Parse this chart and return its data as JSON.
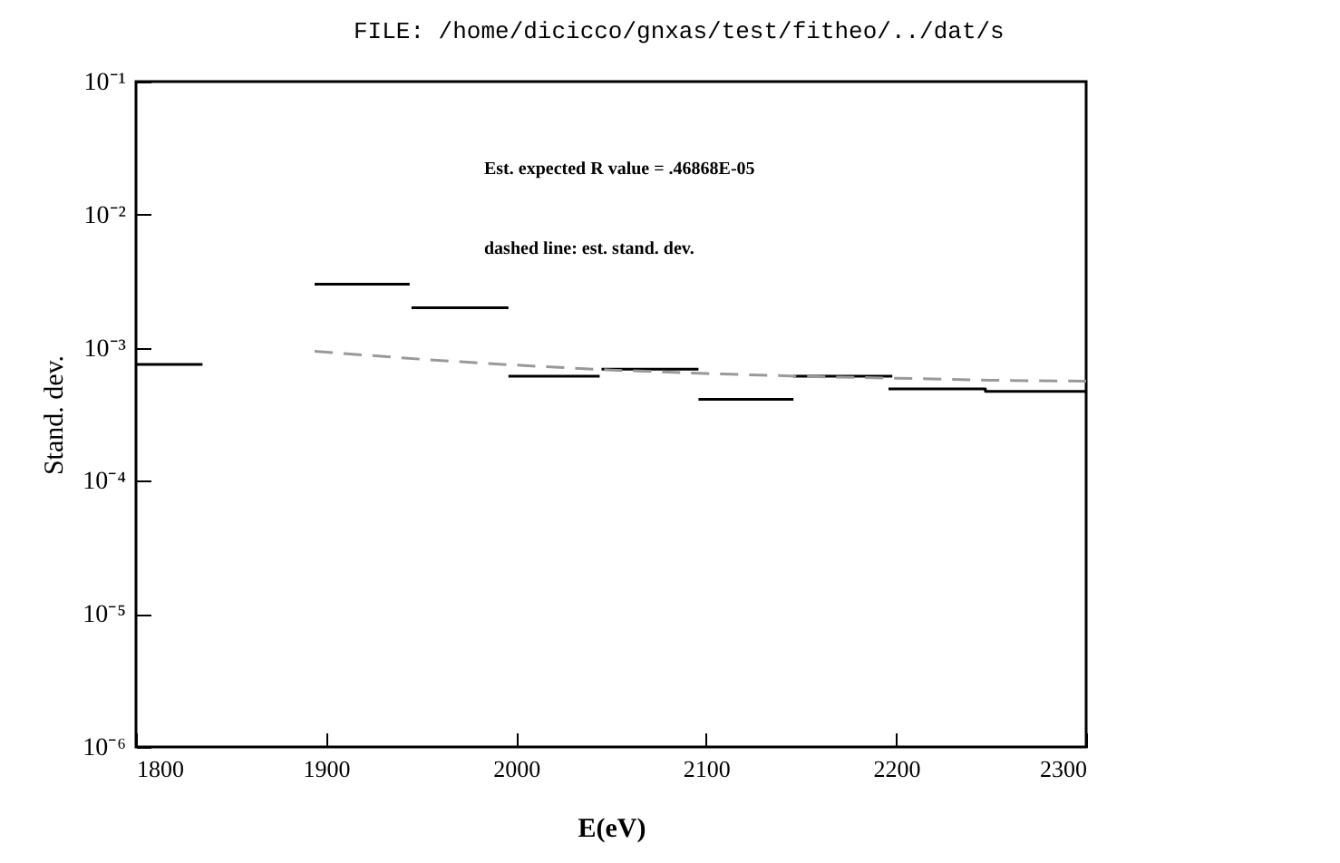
{
  "chart_data": {
    "type": "line",
    "title": "FILE: /home/dicicco/gnxas/test/fitheo/../dat/s",
    "xlabel": "E(eV)",
    "ylabel": "Stand. dev.",
    "annotations": [
      "Est. expected R value = .46868E-05",
      "dashed line: est. stand. dev."
    ],
    "log": "y",
    "grid": false,
    "xlim": [
      1800,
      2300
    ],
    "xticks": [
      1800,
      1900,
      2000,
      2100,
      2200,
      2300
    ],
    "ylim": [
      1e-06,
      0.1
    ],
    "yticks": [
      {
        "value": 1e-06,
        "label": "10⁻⁶"
      },
      {
        "value": 1e-05,
        "label": "10⁻⁵"
      },
      {
        "value": 0.0001,
        "label": "10⁻⁴"
      },
      {
        "value": 0.001,
        "label": "10⁻³"
      },
      {
        "value": 0.01,
        "label": "10⁻²"
      },
      {
        "value": 0.1,
        "label": "10⁻¹"
      }
    ],
    "series": [
      {
        "color": "#000000",
        "line_style": "solid",
        "x": [
          1800,
          1835
        ],
        "values": [
          0.00075,
          0.00075
        ]
      },
      {
        "color": "#000000",
        "line_style": "solid",
        "x": [
          1894,
          1944
        ],
        "values": [
          0.003,
          0.003
        ]
      },
      {
        "color": "#000000",
        "line_style": "solid",
        "x": [
          1945,
          1996
        ],
        "values": [
          0.002,
          0.002
        ]
      },
      {
        "color": "#000000",
        "line_style": "solid",
        "x": [
          1996,
          2044
        ],
        "values": [
          0.00061,
          0.00061
        ]
      },
      {
        "color": "#000000",
        "line_style": "solid",
        "x": [
          2045,
          2096
        ],
        "values": [
          0.00069,
          0.00069
        ]
      },
      {
        "color": "#000000",
        "line_style": "solid",
        "x": [
          2096,
          2146
        ],
        "values": [
          0.00041,
          0.00041
        ]
      },
      {
        "color": "#000000",
        "line_style": "solid",
        "x": [
          2146,
          2198
        ],
        "values": [
          0.00061,
          0.00061
        ]
      },
      {
        "type": "step",
        "color": "#000000",
        "line_style": "solid",
        "x": [
          2196,
          2247,
          2300
        ],
        "values": [
          0.00049,
          0.00047,
          0.00047
        ]
      },
      {
        "color": "#999999",
        "line_style": "dashed",
        "x": [
          1894,
          1950,
          2000,
          2050,
          2100,
          2150,
          2200,
          2250,
          2300
        ],
        "values": [
          0.00094,
          0.00082,
          0.00074,
          0.00068,
          0.00064,
          0.00061,
          0.00059,
          0.00057,
          0.00056
        ]
      }
    ]
  }
}
